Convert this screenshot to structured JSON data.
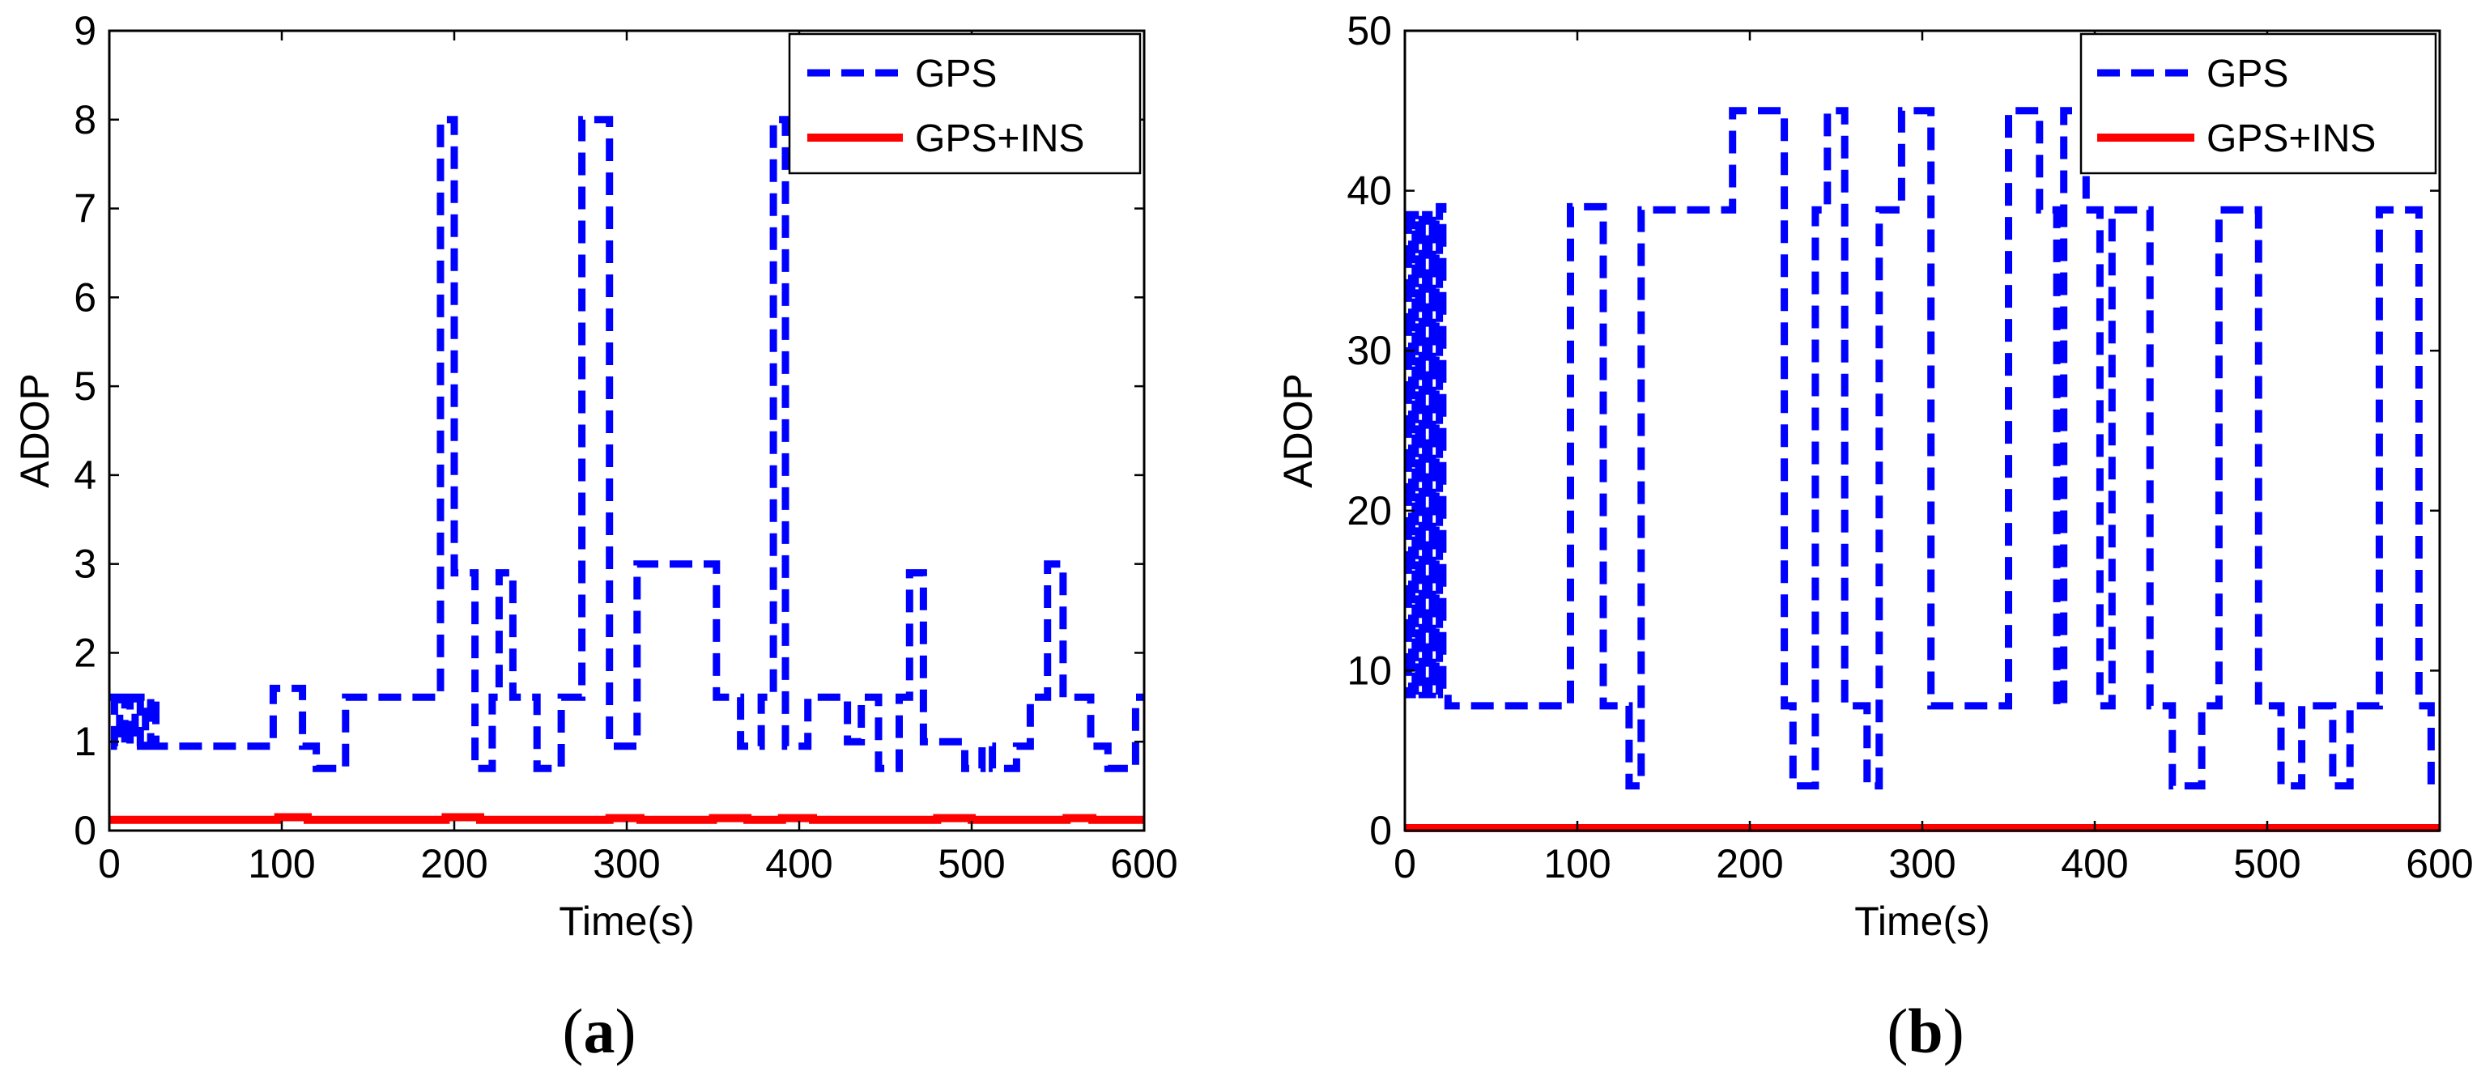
{
  "chart_data": [
    {
      "type": "line",
      "panel_label": "a",
      "caption_open": "(",
      "caption_close": ")",
      "xlabel": "Time(s)",
      "ylabel": "ADOP",
      "xlim": [
        0,
        600
      ],
      "ylim": [
        0,
        9
      ],
      "xticks": [
        0,
        100,
        200,
        300,
        400,
        500,
        600
      ],
      "yticks": [
        0,
        1,
        2,
        3,
        4,
        5,
        6,
        7,
        8,
        9
      ],
      "legend_position": "top-right",
      "series": [
        {
          "name": "GPS",
          "color": "#0000ff",
          "style": "dashed",
          "x": [
            0,
            3,
            3,
            6,
            6,
            9,
            9,
            12,
            12,
            15,
            15,
            18,
            18,
            21,
            21,
            24,
            24,
            27,
            27,
            95,
            95,
            112,
            112,
            120,
            120,
            137,
            137,
            140,
            140,
            192,
            192,
            200,
            200,
            212,
            212,
            222,
            222,
            226,
            226,
            234,
            234,
            248,
            248,
            256,
            256,
            262,
            262,
            274,
            274,
            282,
            282,
            290,
            290,
            306,
            306,
            352,
            352,
            366,
            366,
            378,
            378,
            385,
            385,
            392,
            392,
            405,
            405,
            428,
            428,
            436,
            436,
            446,
            446,
            458,
            458,
            464,
            464,
            472,
            472,
            496,
            496,
            506,
            506,
            512,
            512,
            526,
            526,
            534,
            534,
            544,
            544,
            553,
            553,
            569,
            569,
            579,
            579,
            595,
            595,
            600
          ],
          "y": [
            1.5,
            1.5,
            0.95,
            0.95,
            1.5,
            1.5,
            0.95,
            0.95,
            1.5,
            1.5,
            0.95,
            0.95,
            1.5,
            1.5,
            0.95,
            0.95,
            1.5,
            1.5,
            0.95,
            0.95,
            1.6,
            1.6,
            0.95,
            0.95,
            0.7,
            0.7,
            1.5,
            1.5,
            1.5,
            1.5,
            8.0,
            8.0,
            2.9,
            2.9,
            0.7,
            0.7,
            1.5,
            1.5,
            2.9,
            2.9,
            1.5,
            1.5,
            0.7,
            0.7,
            0.7,
            0.7,
            1.5,
            1.5,
            8.0,
            8.0,
            8.0,
            8.0,
            0.95,
            0.95,
            3.0,
            3.0,
            1.5,
            1.5,
            0.95,
            0.95,
            1.5,
            1.5,
            8.0,
            8.0,
            0.95,
            0.95,
            1.5,
            1.5,
            1.0,
            1.0,
            1.5,
            1.5,
            0.7,
            0.7,
            1.5,
            1.5,
            2.9,
            2.9,
            1.0,
            1.0,
            0.7,
            0.7,
            0.95,
            0.95,
            0.7,
            0.7,
            0.95,
            0.95,
            1.5,
            1.5,
            3.0,
            3.0,
            1.5,
            1.5,
            0.95,
            0.95,
            0.7,
            0.7,
            1.5,
            1.5
          ]
        },
        {
          "name": "GPS+INS",
          "color": "#ff0000",
          "style": "solid",
          "x": [
            0,
            98,
            98,
            115,
            115,
            195,
            195,
            215,
            215,
            290,
            290,
            308,
            308,
            350,
            350,
            370,
            370,
            390,
            390,
            408,
            408,
            480,
            480,
            500,
            500,
            555,
            555,
            570,
            570,
            600
          ],
          "y": [
            0.12,
            0.12,
            0.15,
            0.15,
            0.12,
            0.12,
            0.15,
            0.15,
            0.12,
            0.12,
            0.14,
            0.14,
            0.12,
            0.12,
            0.14,
            0.14,
            0.12,
            0.12,
            0.14,
            0.14,
            0.12,
            0.12,
            0.14,
            0.14,
            0.12,
            0.12,
            0.14,
            0.14,
            0.12,
            0.12
          ]
        }
      ]
    },
    {
      "type": "line",
      "panel_label": "b",
      "caption_open": "(",
      "caption_close": ")",
      "xlabel": "Time(s)",
      "ylabel": "ADOP",
      "xlim": [
        0,
        600
      ],
      "ylim": [
        0,
        50
      ],
      "xticks": [
        0,
        100,
        200,
        300,
        400,
        500,
        600
      ],
      "yticks": [
        0,
        10,
        20,
        30,
        40,
        50
      ],
      "legend_position": "top-right",
      "series": [
        {
          "name": "GPS",
          "color": "#0000ff",
          "style": "dashed",
          "x": [
            0,
            2,
            2,
            4,
            4,
            6,
            6,
            8,
            8,
            10,
            10,
            12,
            12,
            14,
            14,
            16,
            16,
            18,
            18,
            20,
            20,
            22,
            22,
            25,
            25,
            32,
            32,
            96,
            96,
            115,
            115,
            130,
            130,
            137,
            137,
            190,
            190,
            220,
            220,
            225,
            225,
            238,
            238,
            245,
            245,
            255,
            255,
            268,
            268,
            275,
            275,
            288,
            288,
            305,
            305,
            350,
            350,
            368,
            368,
            378,
            378,
            382,
            382,
            395,
            395,
            403,
            403,
            410,
            410,
            432,
            432,
            445,
            445,
            462,
            462,
            472,
            472,
            495,
            495,
            508,
            508,
            520,
            520,
            538,
            538,
            548,
            548,
            565,
            565,
            588,
            588,
            595,
            595,
            600
          ],
          "y": [
            38.5,
            38.5,
            8.5,
            8.5,
            38.5,
            38.5,
            8.5,
            8.5,
            38.5,
            38.5,
            8.5,
            8.5,
            38.5,
            38.5,
            8.5,
            8.5,
            38.5,
            38.5,
            8.5,
            8.5,
            39.0,
            39.0,
            8.5,
            8.5,
            7.8,
            7.8,
            7.8,
            7.8,
            39.0,
            39.0,
            7.8,
            7.8,
            2.8,
            2.8,
            38.8,
            38.8,
            45.0,
            45.0,
            7.8,
            7.8,
            2.8,
            2.8,
            38.8,
            38.8,
            45.0,
            45.0,
            7.8,
            7.8,
            2.8,
            2.8,
            38.8,
            38.8,
            45.0,
            45.0,
            7.8,
            7.8,
            45.0,
            45.0,
            38.8,
            38.8,
            7.8,
            7.8,
            45.0,
            45.0,
            38.8,
            38.8,
            7.8,
            7.8,
            38.8,
            38.8,
            7.8,
            7.8,
            2.8,
            2.8,
            7.8,
            7.8,
            38.8,
            38.8,
            7.8,
            7.8,
            2.8,
            2.8,
            7.8,
            7.8,
            2.8,
            2.8,
            7.8,
            7.8,
            38.8,
            38.8,
            7.8,
            7.8,
            2.8,
            2.8
          ]
        },
        {
          "name": "GPS+INS",
          "color": "#ff0000",
          "style": "solid",
          "x": [
            0,
            600
          ],
          "y": [
            0.15,
            0.15
          ]
        }
      ]
    }
  ]
}
